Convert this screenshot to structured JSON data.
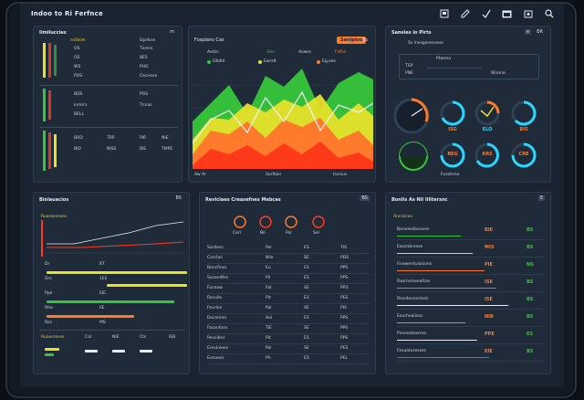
{
  "app": {
    "title": "Indoo to Ri Ferfnce"
  },
  "toolbar_icons": [
    "printer-icon",
    "edit-icon",
    "check-icon",
    "calendar-icon",
    "archive-icon",
    "search-icon"
  ],
  "panels": {
    "top_left": {
      "title": "Iimiluccies",
      "col_headers": [
        "nrdloom",
        "Sipefuse"
      ],
      "rows": [
        {
          "label": "OS",
          "value": "Ticens"
        },
        {
          "label": "OS",
          "value": "8ES"
        },
        {
          "label": "WS",
          "value": "PHG"
        },
        {
          "label": "POS",
          "value": "Cecnesa"
        },
        {
          "label": "BDS",
          "value": "POS"
        }
      ],
      "mid_labels": [
        "inmrrs",
        "Tnnas",
        "BELL"
      ],
      "bottom_rows": [
        {
          "label": "BRD",
          "value": "TRP"
        },
        {
          "label": "PIR",
          "value": "NIE"
        },
        {
          "label": "BID",
          "value": "NISS"
        },
        {
          "label": "BIE",
          "value": "TMPE"
        }
      ],
      "icons_label": "m"
    },
    "top_mid": {
      "title": "Fosplans Cas",
      "button": "Senipioo",
      "tab_icon": "Es",
      "legend": [
        "Gfolld",
        "Ewrslt",
        "Eg,ves"
      ],
      "stats": [
        {
          "label": "Aedrc",
          "value": "Bss"
        },
        {
          "label": "Aowre",
          "value": "Fsfhe"
        }
      ],
      "footer": [
        "Aw Ar",
        "Sorlhan",
        "Isvicus"
      ],
      "colors": {
        "green": "#36c63a",
        "yellow": "#e7e12a",
        "orange": "#ff6a22",
        "red": "#ff3a1a"
      }
    },
    "top_right": {
      "title": "Sansles io Pirts",
      "icons": [
        "e",
        "BR"
      ],
      "subtitle": "Ss Inesgaresvese",
      "tag": "Ptwesa",
      "labels": [
        "TSP",
        "PNE",
        "Wirone",
        "Fusetnne"
      ],
      "gauges": [
        {
          "value": "ISG",
          "color": "#ff7a2a"
        },
        {
          "value": "ELO",
          "color": "#2ad8ff"
        },
        {
          "value": "BIS",
          "color": "#ff7a2a"
        },
        {
          "value": "REG",
          "color": "#2ad8ff"
        },
        {
          "value": "KRS",
          "color": "#ff7a2a"
        },
        {
          "value": "CRE",
          "color": "#2ad8ff"
        }
      ]
    },
    "bottom_left": {
      "title": "Binlauacios",
      "icon": "BS",
      "subtitle": "Ruorassnoec",
      "rows": [
        {
          "label": "Dr",
          "value": "8T"
        },
        {
          "label": "Ors",
          "value": "1EE"
        },
        {
          "label": "Ppe",
          "value": "EIE"
        },
        {
          "label": "Rite",
          "value": "IIE"
        },
        {
          "label": "Roc",
          "value": "MS"
        }
      ],
      "footer_labels": [
        "Ruoesrevss",
        "Cal",
        "NIE",
        "Cts",
        "IEB"
      ]
    },
    "bottom_mid": {
      "title": "Reviclaes Creasefnes Mebcas",
      "icon": "BS",
      "gauges": [
        "Cerl",
        "Bil",
        "Pol",
        "Sel"
      ],
      "rows": [
        {
          "name": "Sardess",
          "a": "Pol",
          "b": "ES",
          "c": "TIS"
        },
        {
          "name": "Corclan",
          "a": "Wle",
          "b": "SE",
          "c": "PDS"
        },
        {
          "name": "Bancfioss",
          "a": "Eu",
          "b": "ES",
          "c": "PPS"
        },
        {
          "name": "Ssoandfes",
          "a": "Pil",
          "b": "ES",
          "c": "PPS"
        },
        {
          "name": "Foceaw",
          "a": "Fat",
          "b": "SE",
          "c": "PRS"
        },
        {
          "name": "Recuits",
          "a": "Pit",
          "b": "ES",
          "c": "PES"
        },
        {
          "name": "Fevrlon",
          "a": "Pol",
          "b": "SE",
          "c": "PIS"
        },
        {
          "name": "Dscoreiss",
          "a": "Aoi",
          "b": "ES",
          "c": "PPS"
        },
        {
          "name": "Fasanfons",
          "a": "TIE",
          "b": "SE",
          "c": "PPS"
        },
        {
          "name": "Pesvibes",
          "a": "Pit",
          "b": "ES",
          "c": "PPS"
        },
        {
          "name": "Ersuinlees",
          "a": "Pol",
          "b": "SE",
          "c": "PES"
        },
        {
          "name": "Evnoess",
          "a": "Ph",
          "b": "ES",
          "c": "PEL"
        }
      ]
    },
    "bottom_right": {
      "title": "Bonlis As Nil Illitersnc",
      "icon": "E",
      "subtitle": "Ancisicos",
      "rows": [
        {
          "name": "Benoiesfeorone",
          "value": "BIE",
          "badge": "BS"
        },
        {
          "name": "Eascnbrsese",
          "value": "MIS",
          "badge": "BS"
        },
        {
          "name": "Fisewentuiasions",
          "value": "PIE",
          "badge": "NS"
        },
        {
          "name": "Rasrneiseoafore",
          "value": "ISE",
          "badge": "BS"
        },
        {
          "name": "Riesdonceslont",
          "value": "ISE",
          "badge": "BS"
        },
        {
          "name": "Esscheaiioss",
          "value": "NIB",
          "badge": "BS"
        },
        {
          "name": "Pnnsoatosress",
          "value": "PPE",
          "badge": "ES"
        },
        {
          "name": "Fesuotoresses",
          "value": "EIE",
          "badge": "BS"
        }
      ]
    }
  }
}
